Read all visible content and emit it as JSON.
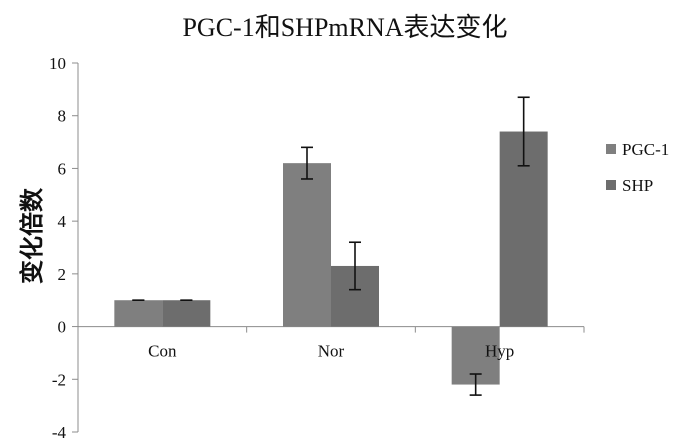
{
  "chart_data": {
    "type": "bar",
    "title": "PGC-1和SHPmRNA表达变化",
    "xlabel": "",
    "ylabel": "变化倍数",
    "ylim": [
      -4,
      10
    ],
    "yticks": [
      -4,
      -2,
      0,
      2,
      4,
      6,
      8,
      10
    ],
    "grid": false,
    "legend_position": "right",
    "categories": [
      "Con",
      "Nor",
      "Hyp"
    ],
    "series": [
      {
        "name": "PGC-1",
        "values": [
          1.0,
          6.2,
          -2.2
        ],
        "errors": [
          0.0,
          0.6,
          0.4
        ],
        "color": "#7f7f7f"
      },
      {
        "name": "SHP",
        "values": [
          1.0,
          2.3,
          7.4
        ],
        "errors": [
          0.0,
          0.9,
          1.3
        ],
        "color": "#6d6d6d"
      }
    ]
  }
}
